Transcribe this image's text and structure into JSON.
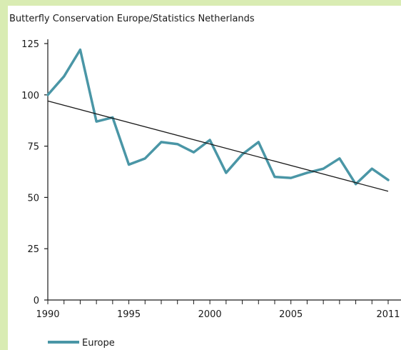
{
  "colors": {
    "background": "#d9ecb3",
    "series": "#4a96a6",
    "trend": "#1a1a1a",
    "axis": "#1a1a1a"
  },
  "chart_data": {
    "type": "line",
    "title": "Butterfly Conservation Europe/Statistics Netherlands",
    "xlabel": "",
    "ylabel": "",
    "xlim": [
      1990,
      2011
    ],
    "ylim": [
      0,
      125
    ],
    "x_ticks": [
      1990,
      1995,
      2000,
      2005,
      2011
    ],
    "x_tick_labels": [
      "1990",
      "1995",
      "2000",
      "2005",
      "2011"
    ],
    "y_ticks": [
      0,
      25,
      50,
      75,
      100,
      125
    ],
    "y_tick_labels": [
      "0",
      "25",
      "50",
      "75",
      "100",
      "125"
    ],
    "grid": false,
    "legend": "bottom-left",
    "series": [
      {
        "name": "Europe",
        "x": [
          1990,
          1991,
          1992,
          1993,
          1994,
          1995,
          1996,
          1997,
          1998,
          1999,
          2000,
          2001,
          2002,
          2003,
          2004,
          2005,
          2006,
          2007,
          2008,
          2009,
          2010,
          2011
        ],
        "values": [
          100,
          109,
          122,
          87,
          89,
          66,
          69,
          77,
          76,
          72,
          78,
          62,
          71,
          77,
          60,
          59.5,
          62,
          64,
          69,
          56.5,
          64,
          58.5
        ]
      }
    ],
    "trend_line": {
      "x": [
        1990,
        2011
      ],
      "values": [
        97,
        53
      ]
    }
  }
}
